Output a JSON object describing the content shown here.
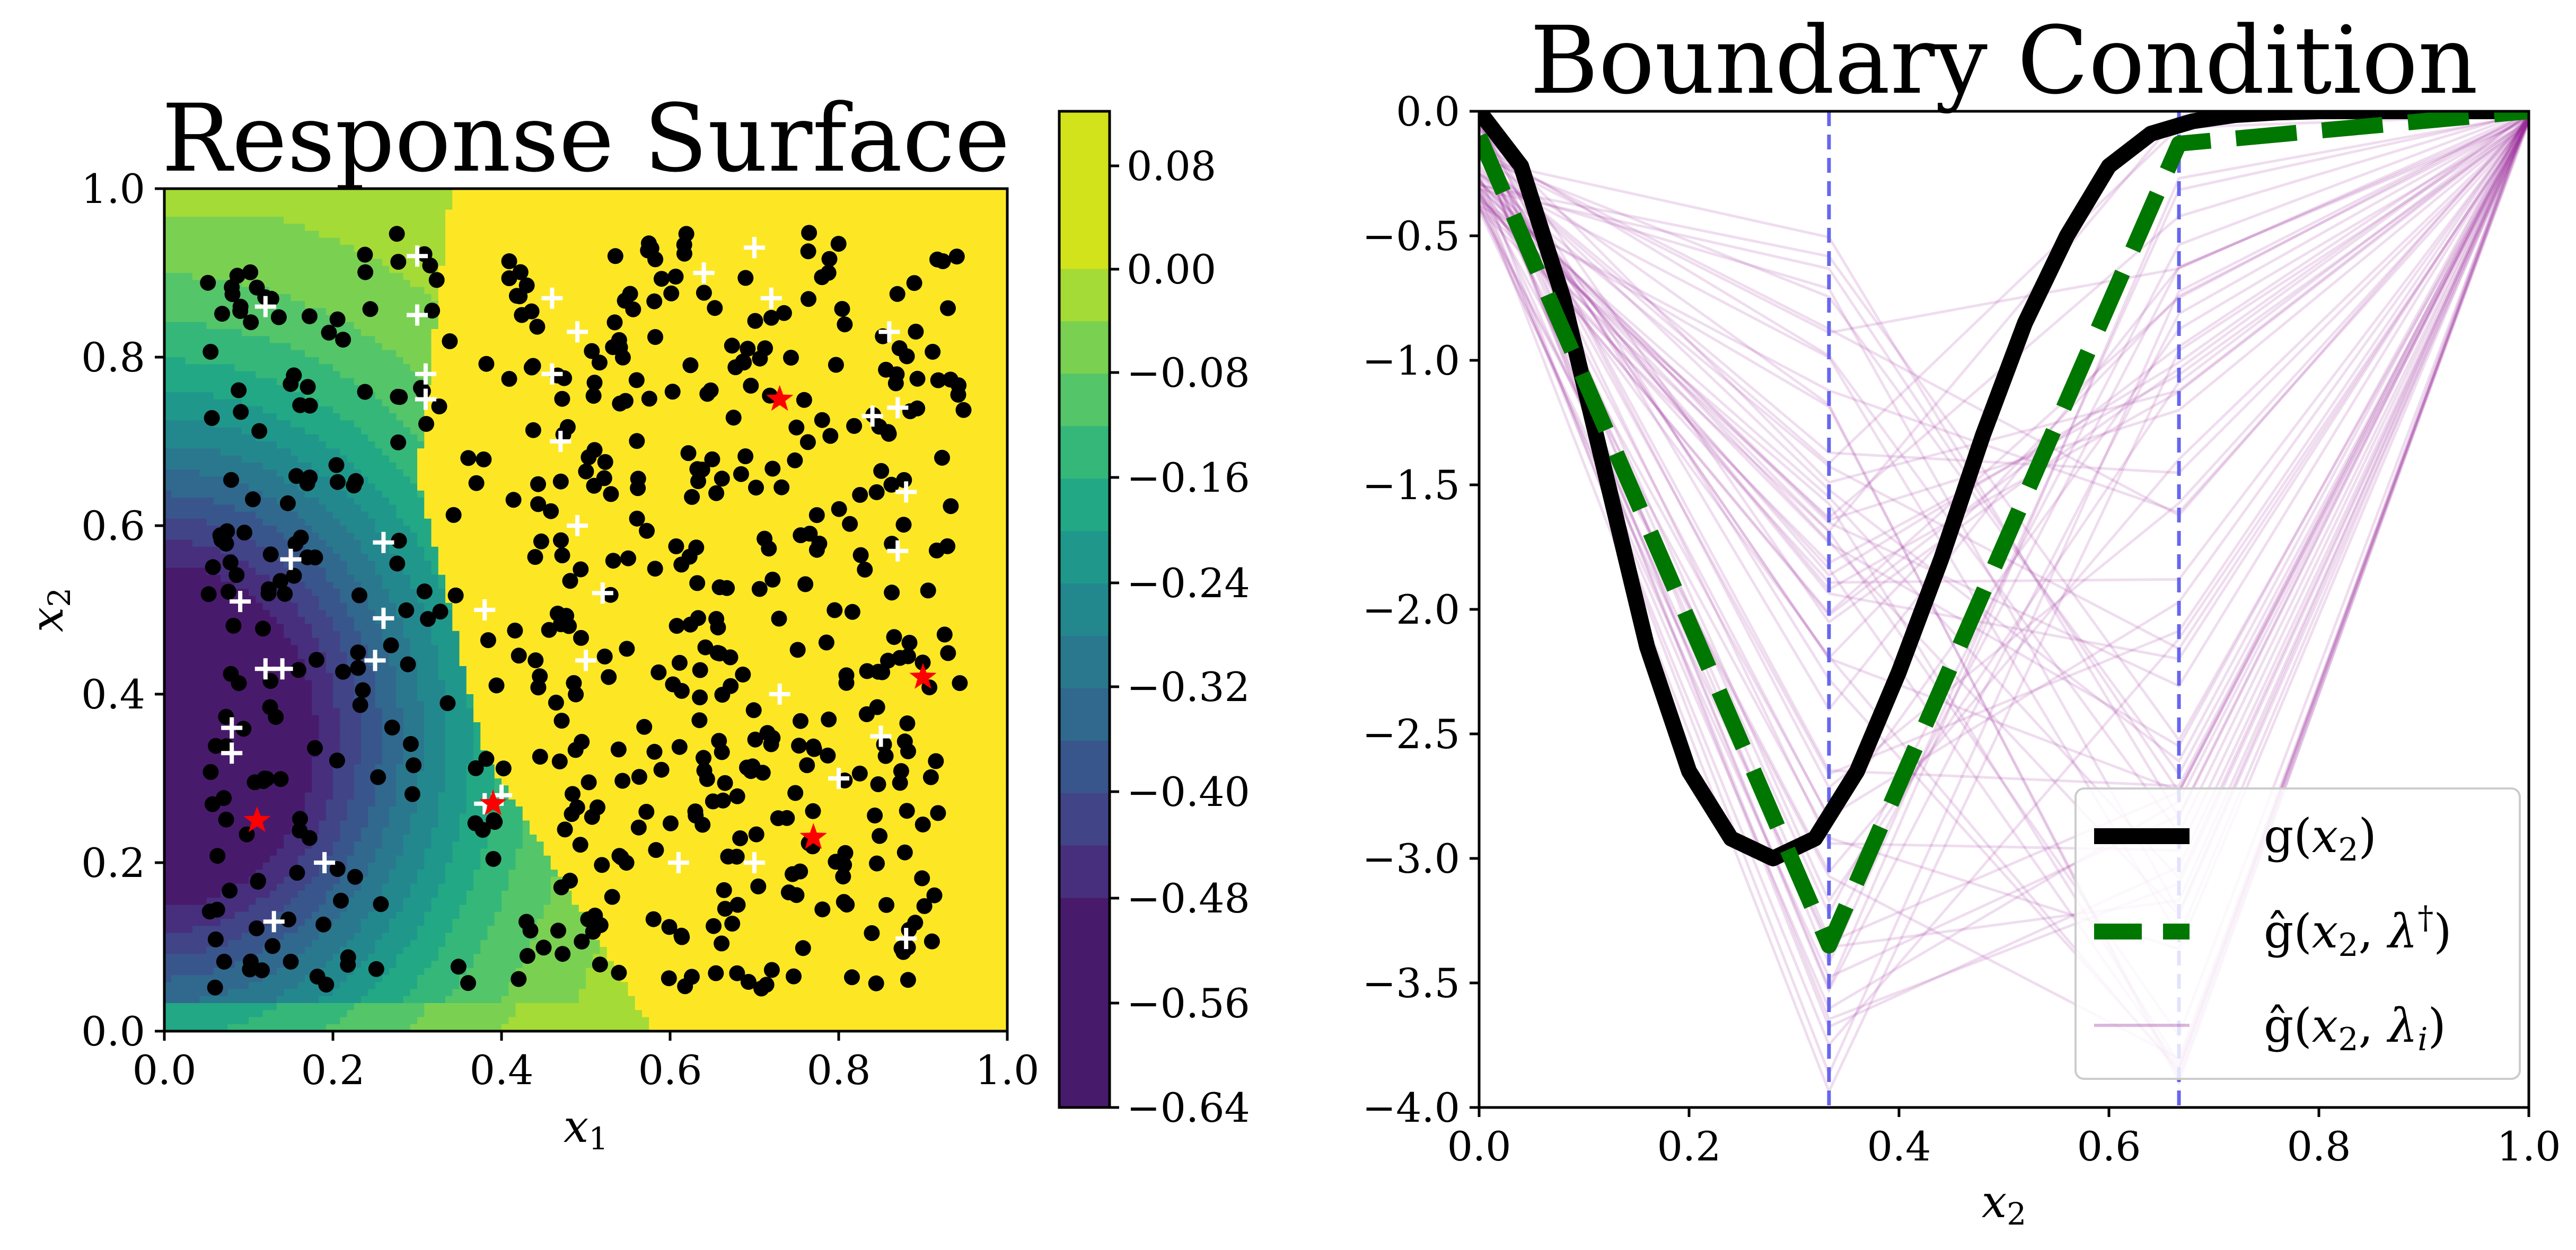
{
  "chart_data": [
    {
      "type": "filled-contour-scatter",
      "title": "Response Surface",
      "xlabel": "x₁",
      "ylabel": "x₂",
      "xlim": [
        0,
        1
      ],
      "ylim": [
        0,
        1
      ],
      "x_ticks": [
        "0.0",
        "0.2",
        "0.4",
        "0.6",
        "0.8",
        "1.0"
      ],
      "y_ticks": [
        "0.0",
        "0.2",
        "0.4",
        "0.6",
        "0.8",
        "1.0"
      ],
      "surface": {
        "min_value": -0.64,
        "min_location": [
          0.0,
          0.35
        ],
        "boundary_x_low": [
          0.33,
          0.18,
          0.36,
          0.58
        ],
        "boundary_x_high": [
          0.48,
          0.5,
          0.4,
          0.6
        ]
      },
      "colorbar": {
        "ticks": [
          "0.08",
          "0.00",
          "−0.08",
          "−0.16",
          "−0.24",
          "−0.32",
          "−0.40",
          "−0.48",
          "−0.56",
          "−0.64"
        ],
        "levels": [
          -0.64,
          -0.48,
          -0.44,
          -0.4,
          -0.36,
          -0.32,
          -0.28,
          -0.24,
          -0.2,
          -0.16,
          -0.12,
          -0.08,
          -0.04,
          0.0,
          0.12
        ],
        "colors": [
          "#440154",
          "#481a6c",
          "#472f7d",
          "#414487",
          "#39568c",
          "#31688e",
          "#2a788e",
          "#23888e",
          "#1f988b",
          "#22a884",
          "#35b779",
          "#54c568",
          "#7ad151",
          "#a5db36",
          "#d2e21b",
          "#fde725"
        ]
      },
      "series": [
        {
          "name": "samples",
          "marker": "dot",
          "color": "#000000",
          "count": 560
        },
        {
          "name": "white crosses",
          "marker": "plus",
          "color": "#ffffff",
          "points": [
            [
              0.3,
              0.92
            ],
            [
              0.12,
              0.86
            ],
            [
              0.64,
              0.9
            ],
            [
              0.7,
              0.93
            ],
            [
              0.72,
              0.87
            ],
            [
              0.49,
              0.83
            ],
            [
              0.46,
              0.87
            ],
            [
              0.31,
              0.78
            ],
            [
              0.31,
              0.75
            ],
            [
              0.46,
              0.78
            ],
            [
              0.47,
              0.7
            ],
            [
              0.84,
              0.73
            ],
            [
              0.87,
              0.74
            ],
            [
              0.26,
              0.58
            ],
            [
              0.15,
              0.56
            ],
            [
              0.09,
              0.51
            ],
            [
              0.38,
              0.5
            ],
            [
              0.26,
              0.49
            ],
            [
              0.12,
              0.43
            ],
            [
              0.14,
              0.43
            ],
            [
              0.25,
              0.44
            ],
            [
              0.49,
              0.6
            ],
            [
              0.52,
              0.52
            ],
            [
              0.5,
              0.44
            ],
            [
              0.87,
              0.57
            ],
            [
              0.88,
              0.64
            ],
            [
              0.08,
              0.36
            ],
            [
              0.08,
              0.33
            ],
            [
              0.38,
              0.27
            ],
            [
              0.4,
              0.28
            ],
            [
              0.73,
              0.4
            ],
            [
              0.85,
              0.35
            ],
            [
              0.19,
              0.2
            ],
            [
              0.61,
              0.2
            ],
            [
              0.7,
              0.2
            ],
            [
              0.13,
              0.13
            ],
            [
              0.88,
              0.11
            ],
            [
              0.8,
              0.3
            ],
            [
              0.86,
              0.83
            ],
            [
              0.3,
              0.85
            ]
          ]
        },
        {
          "name": "red stars",
          "marker": "star",
          "color": "#ff0000",
          "points": [
            [
              0.73,
              0.75
            ],
            [
              0.9,
              0.42
            ],
            [
              0.11,
              0.25
            ],
            [
              0.39,
              0.27
            ],
            [
              0.77,
              0.23
            ]
          ]
        }
      ]
    },
    {
      "type": "line",
      "title": "Boundary Condition",
      "xlabel": "x₂",
      "ylabel": "",
      "xlim": [
        0,
        1
      ],
      "ylim": [
        -4,
        0
      ],
      "x_ticks": [
        "0.0",
        "0.2",
        "0.4",
        "0.6",
        "0.8",
        "1.0"
      ],
      "y_ticks": [
        "0.0",
        "−0.5",
        "−1.0",
        "−1.5",
        "−2.0",
        "−2.5",
        "−3.0",
        "−3.5",
        "−4.0"
      ],
      "vlines": [
        0.3333,
        0.6667
      ],
      "vline_color": "#6666ee",
      "legend_position": "lower right",
      "series": [
        {
          "name": "g(x₂)",
          "color": "#000000",
          "style": "solid thick",
          "x": [
            0.0,
            0.04,
            0.08,
            0.12,
            0.16,
            0.2,
            0.24,
            0.28,
            0.32,
            0.36,
            0.4,
            0.44,
            0.48,
            0.52,
            0.56,
            0.6,
            0.64,
            0.68,
            0.72,
            0.76,
            0.8,
            0.84,
            0.88,
            0.92,
            0.96,
            1.0
          ],
          "y": [
            0.0,
            -0.22,
            -0.75,
            -1.45,
            -2.15,
            -2.65,
            -2.92,
            -3.0,
            -2.92,
            -2.65,
            -2.25,
            -1.8,
            -1.3,
            -0.85,
            -0.5,
            -0.22,
            -0.09,
            -0.04,
            -0.015,
            -0.005,
            0.0,
            0.0,
            0.0,
            0.0,
            0.0,
            0.0
          ]
        },
        {
          "name": "ĝ(x₂, λ†)",
          "color": "#007700",
          "style": "dashed thick",
          "x": [
            0.0,
            0.3333,
            0.6667,
            1.0
          ],
          "y": [
            -0.1,
            -3.35,
            -0.13,
            0.0
          ]
        },
        {
          "name": "ĝ(x₂, λᵢ)",
          "color": "#9b2d9b",
          "style": "thin translucent",
          "count": 64
        }
      ],
      "legend_entries": {
        "g": [
          "g(",
          "x",
          "2",
          ")"
        ],
        "ghat_dagger": [
          "ĝ(",
          "x",
          "2",
          ", ",
          "λ",
          "†",
          ")"
        ],
        "ghat_i": [
          "ĝ(",
          "x",
          "2",
          ", ",
          "λ",
          "i",
          ")"
        ]
      }
    }
  ]
}
